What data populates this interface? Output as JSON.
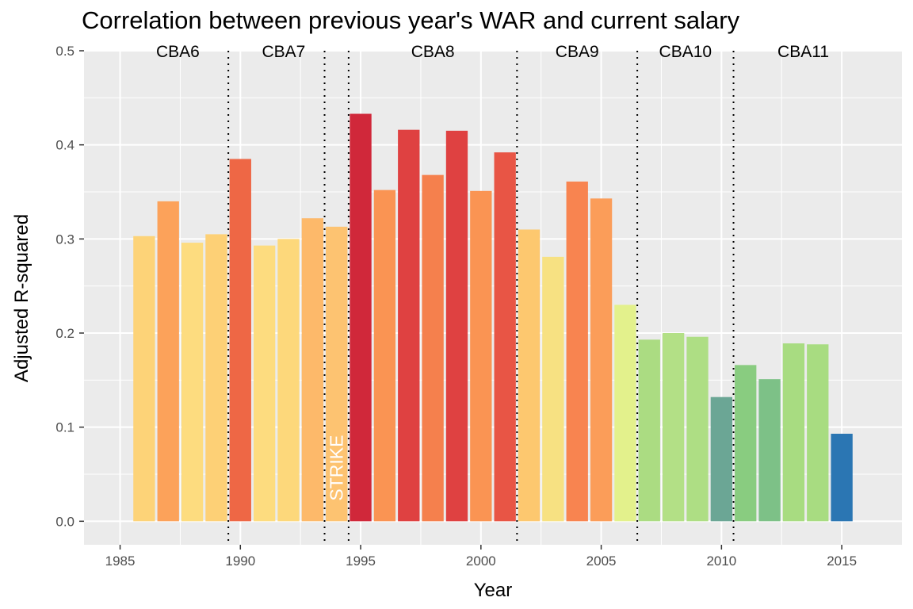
{
  "chart_data": {
    "type": "bar",
    "title": "Correlation between previous year's WAR and current salary",
    "xlabel": "Year",
    "ylabel": "Adjusted R-squared",
    "xlim": [
      1983.5,
      2017.5
    ],
    "ylim": [
      -0.025,
      0.5
    ],
    "x_ticks": [
      1985,
      1990,
      1995,
      2000,
      2005,
      2010,
      2015
    ],
    "y_ticks": [
      0.0,
      0.1,
      0.2,
      0.3,
      0.4,
      0.5
    ],
    "y_tick_labels": [
      "0.0",
      "0.1",
      "0.2",
      "0.3",
      "0.4",
      "0.5"
    ],
    "grid": true,
    "legend": "none",
    "bars": [
      {
        "x": 1986,
        "value": 0.303,
        "color": "#FDD378"
      },
      {
        "x": 1987,
        "value": 0.34,
        "color": "#FCA25A"
      },
      {
        "x": 1988,
        "value": 0.296,
        "color": "#FDDC7F"
      },
      {
        "x": 1989,
        "value": 0.305,
        "color": "#FDD076"
      },
      {
        "x": 1990,
        "value": 0.385,
        "color": "#EE6745"
      },
      {
        "x": 1991,
        "value": 0.293,
        "color": "#FDDC7F"
      },
      {
        "x": 1992,
        "value": 0.3,
        "color": "#FDD87B"
      },
      {
        "x": 1993,
        "value": 0.322,
        "color": "#FDB96A"
      },
      {
        "x": 1994,
        "value": 0.313,
        "color": "#FDC371"
      },
      {
        "x": 1995,
        "value": 0.433,
        "color": "#D0283A"
      },
      {
        "x": 1996,
        "value": 0.352,
        "color": "#FA9453"
      },
      {
        "x": 1997,
        "value": 0.416,
        "color": "#DF4141"
      },
      {
        "x": 1998,
        "value": 0.368,
        "color": "#F5804D"
      },
      {
        "x": 1999,
        "value": 0.415,
        "color": "#DF4141"
      },
      {
        "x": 2000,
        "value": 0.351,
        "color": "#FA9453"
      },
      {
        "x": 2001,
        "value": 0.392,
        "color": "#E85545"
      },
      {
        "x": 2002,
        "value": 0.31,
        "color": "#FDC86F"
      },
      {
        "x": 2003,
        "value": 0.281,
        "color": "#F7E182"
      },
      {
        "x": 2004,
        "value": 0.361,
        "color": "#F88450"
      },
      {
        "x": 2005,
        "value": 0.343,
        "color": "#FB9D59"
      },
      {
        "x": 2006,
        "value": 0.23,
        "color": "#E3F18C"
      },
      {
        "x": 2007,
        "value": 0.193,
        "color": "#ABDC82"
      },
      {
        "x": 2008,
        "value": 0.2,
        "color": "#B3E086"
      },
      {
        "x": 2009,
        "value": 0.196,
        "color": "#AEDE84"
      },
      {
        "x": 2010,
        "value": 0.132,
        "color": "#6BA695"
      },
      {
        "x": 2011,
        "value": 0.166,
        "color": "#89CC80"
      },
      {
        "x": 2012,
        "value": 0.151,
        "color": "#7DC187"
      },
      {
        "x": 2013,
        "value": 0.189,
        "color": "#A8DC81"
      },
      {
        "x": 2014,
        "value": 0.188,
        "color": "#A8DC81"
      },
      {
        "x": 2015,
        "value": 0.093,
        "color": "#2B76B3"
      }
    ],
    "vlines": [
      1989.5,
      1993.5,
      1994.5,
      2001.5,
      2006.5,
      2010.5
    ],
    "vline_segments": [
      {
        "x": 1989.5,
        "from": -0.025,
        "to": 0.5
      },
      {
        "x": 1993.5,
        "from": -0.025,
        "to": 0.5
      },
      {
        "x": 1994.5,
        "from": -0.025,
        "to": 0.5
      },
      {
        "x": 2001.5,
        "from": -0.025,
        "to": 0.5
      },
      {
        "x": 2006.5,
        "from": -0.025,
        "to": 0.5
      },
      {
        "x": 2010.5,
        "from": -0.025,
        "to": 0.5
      }
    ],
    "annotations": [
      {
        "label": "CBA6",
        "x": 1987.4,
        "y": 0.5
      },
      {
        "label": "CBA7",
        "x": 1991.8,
        "y": 0.5
      },
      {
        "label": "CBA8",
        "x": 1998.0,
        "y": 0.5
      },
      {
        "label": "CBA9",
        "x": 2004.0,
        "y": 0.5
      },
      {
        "label": "CBA10",
        "x": 2008.5,
        "y": 0.5
      },
      {
        "label": "CBA11",
        "x": 2013.4,
        "y": 0.5
      }
    ],
    "strike_label": {
      "label": "STRIKE",
      "x": 1994.0,
      "y": 0.02
    }
  }
}
